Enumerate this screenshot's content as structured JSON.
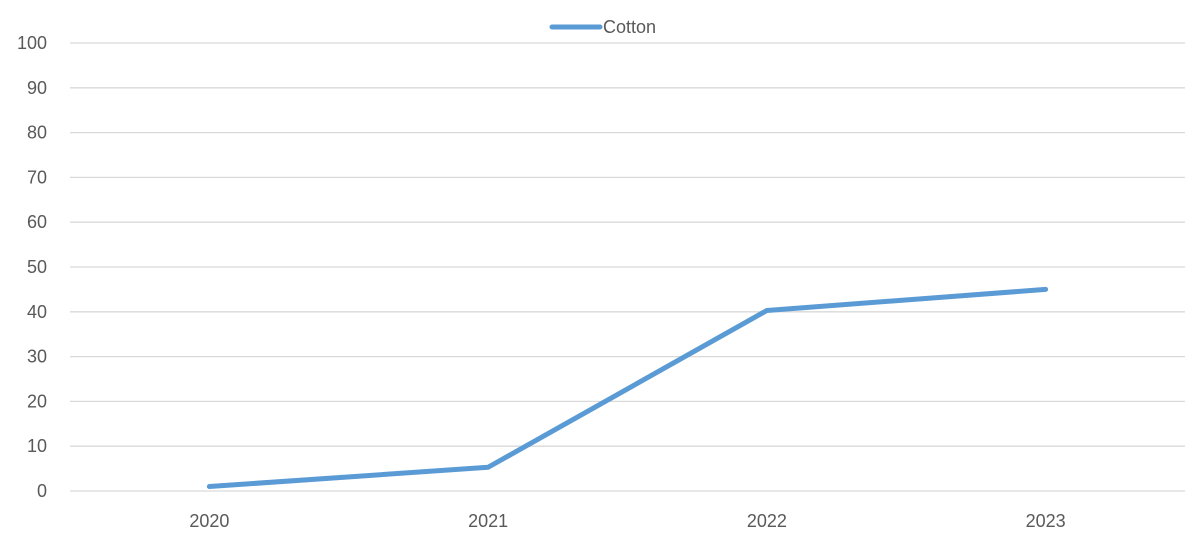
{
  "chart_data": {
    "type": "line",
    "categories": [
      "2020",
      "2021",
      "2022",
      "2023"
    ],
    "series": [
      {
        "name": "Cotton",
        "values": [
          1,
          5.3,
          40.3,
          45
        ],
        "color": "#5B9BD5"
      }
    ],
    "ylim": [
      0,
      100
    ],
    "yticks": [
      0,
      10,
      20,
      30,
      40,
      50,
      60,
      70,
      80,
      90,
      100
    ],
    "grid": true,
    "legend_position": "top-center",
    "title": "",
    "xlabel": "",
    "ylabel": "",
    "gridline_color": "#D9D9D9",
    "text_color": "#595959"
  }
}
